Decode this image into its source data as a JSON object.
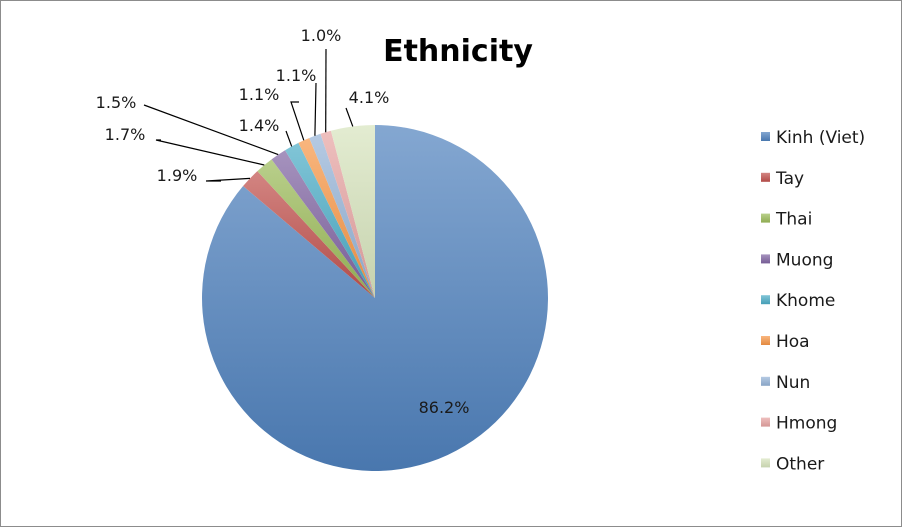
{
  "chart_data": {
    "type": "pie",
    "title": "Ethnicity",
    "legend_position": "right",
    "slices": [
      {
        "name": "Kinh (Viet)",
        "label": "86.2%",
        "value": 86.2,
        "color": "#4f81bd"
      },
      {
        "name": "Tay",
        "label": "1.9%",
        "value": 1.9,
        "color": "#c0504d"
      },
      {
        "name": "Thai",
        "label": "1.7%",
        "value": 1.7,
        "color": "#9bbb59"
      },
      {
        "name": "Muong",
        "label": "1.5%",
        "value": 1.5,
        "color": "#8064a2"
      },
      {
        "name": "Khome",
        "label": "1.4%",
        "value": 1.4,
        "color": "#4bacc6"
      },
      {
        "name": "Hoa",
        "label": "1.1%",
        "value": 1.1,
        "color": "#f79646"
      },
      {
        "name": "Nun",
        "label": "1.1%",
        "value": 1.1,
        "color": "#95b3d7"
      },
      {
        "name": "Hmong",
        "label": "1.0%",
        "value": 1.0,
        "color": "#e6a4a2"
      },
      {
        "name": "Other",
        "label": "4.1%",
        "value": 4.1,
        "color": "#d7e4bd"
      }
    ]
  }
}
